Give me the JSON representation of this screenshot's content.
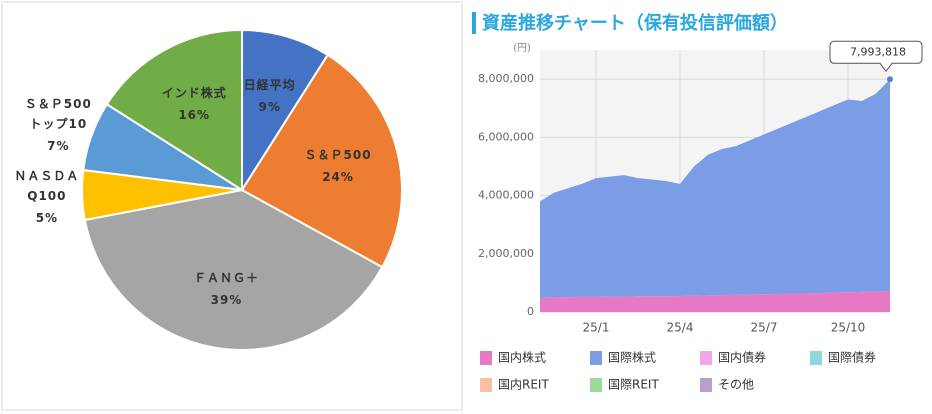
{
  "chart_data": [
    {
      "type": "pie",
      "categories": [
        "日経平均",
        "Ｓ＆Ｐ500",
        "ＦＡＮＧ＋",
        "ＮＡＳＤＡ\nQ100",
        "Ｓ＆Ｐ500\nトップ10",
        "インド株式"
      ],
      "values": [
        9,
        24,
        39,
        5,
        7,
        16
      ],
      "value_labels": [
        "9%",
        "24%",
        "39%",
        "5%",
        "7%",
        "16%"
      ],
      "colors": [
        "#4472c4",
        "#ed7d31",
        "#a5a5a5",
        "#ffc000",
        "#5b9bd5",
        "#70ad47"
      ]
    },
    {
      "type": "area",
      "title": "資産推移チャート（保有投信評価額）",
      "y_label": "(円)",
      "annotation": "7,993,818",
      "categories": [
        null,
        null,
        null,
        null,
        "25/1",
        null,
        null,
        null,
        null,
        null,
        "25/4",
        null,
        null,
        null,
        null,
        null,
        "25/7",
        null,
        null,
        null,
        null,
        null,
        "25/10",
        null,
        null,
        null
      ],
      "ylim": [
        0,
        9000000
      ],
      "yticks": [
        0,
        {
          "value": 2000000,
          "label": "2,000,000"
        },
        {
          "value": 4000000,
          "label": "4,000,000"
        },
        {
          "value": 6000000,
          "label": "6,000,000"
        },
        {
          "value": 8000000,
          "label": "8,000,000"
        }
      ],
      "grid": true,
      "series": [
        {
          "name": "国内株式",
          "color": "#e879c4",
          "values": [
            480000,
            500000,
            510000,
            520000,
            520000,
            530000,
            530000,
            540000,
            540000,
            540000,
            550000,
            560000,
            570000,
            580000,
            590000,
            600000,
            610000,
            620000,
            630000,
            640000,
            650000,
            670000,
            680000,
            690000,
            700000,
            720000
          ]
        },
        {
          "name": "国際株式",
          "color": "#7b9de6",
          "values": [
            3320000,
            3600000,
            3740000,
            3880000,
            4080000,
            4120000,
            4170000,
            4060000,
            4010000,
            3960000,
            3850000,
            4440000,
            4830000,
            5020000,
            5110000,
            5300000,
            5490000,
            5680000,
            5870000,
            6060000,
            6250000,
            6430000,
            6620000,
            6560000,
            6800000,
            7273818
          ]
        },
        {
          "name": "国内債券",
          "color": "#f0a8e8",
          "values": [
            0,
            0,
            0,
            0,
            0,
            0,
            0,
            0,
            0,
            0,
            0,
            0,
            0,
            0,
            0,
            0,
            0,
            0,
            0,
            0,
            0,
            0,
            0,
            0,
            0,
            0
          ]
        },
        {
          "name": "国際債券",
          "color": "#8fd8e0",
          "values": [
            0,
            0,
            0,
            0,
            0,
            0,
            0,
            0,
            0,
            0,
            0,
            0,
            0,
            0,
            0,
            0,
            0,
            0,
            0,
            0,
            0,
            0,
            0,
            0,
            0,
            0
          ]
        },
        {
          "name": "国内REIT",
          "color": "#f8c0a0",
          "values": [
            0,
            0,
            0,
            0,
            0,
            0,
            0,
            0,
            0,
            0,
            0,
            0,
            0,
            0,
            0,
            0,
            0,
            0,
            0,
            0,
            0,
            0,
            0,
            0,
            0,
            0
          ]
        },
        {
          "name": "国際REIT",
          "color": "#98dc98",
          "values": [
            0,
            0,
            0,
            0,
            0,
            0,
            0,
            0,
            0,
            0,
            0,
            0,
            0,
            0,
            0,
            0,
            0,
            0,
            0,
            0,
            0,
            0,
            0,
            0,
            0,
            0
          ]
        },
        {
          "name": "その他",
          "color": "#b8a0cc",
          "values": [
            0,
            0,
            0,
            0,
            0,
            0,
            0,
            0,
            0,
            0,
            0,
            0,
            0,
            0,
            0,
            0,
            0,
            0,
            0,
            0,
            0,
            0,
            0,
            0,
            0,
            0
          ]
        }
      ]
    }
  ]
}
